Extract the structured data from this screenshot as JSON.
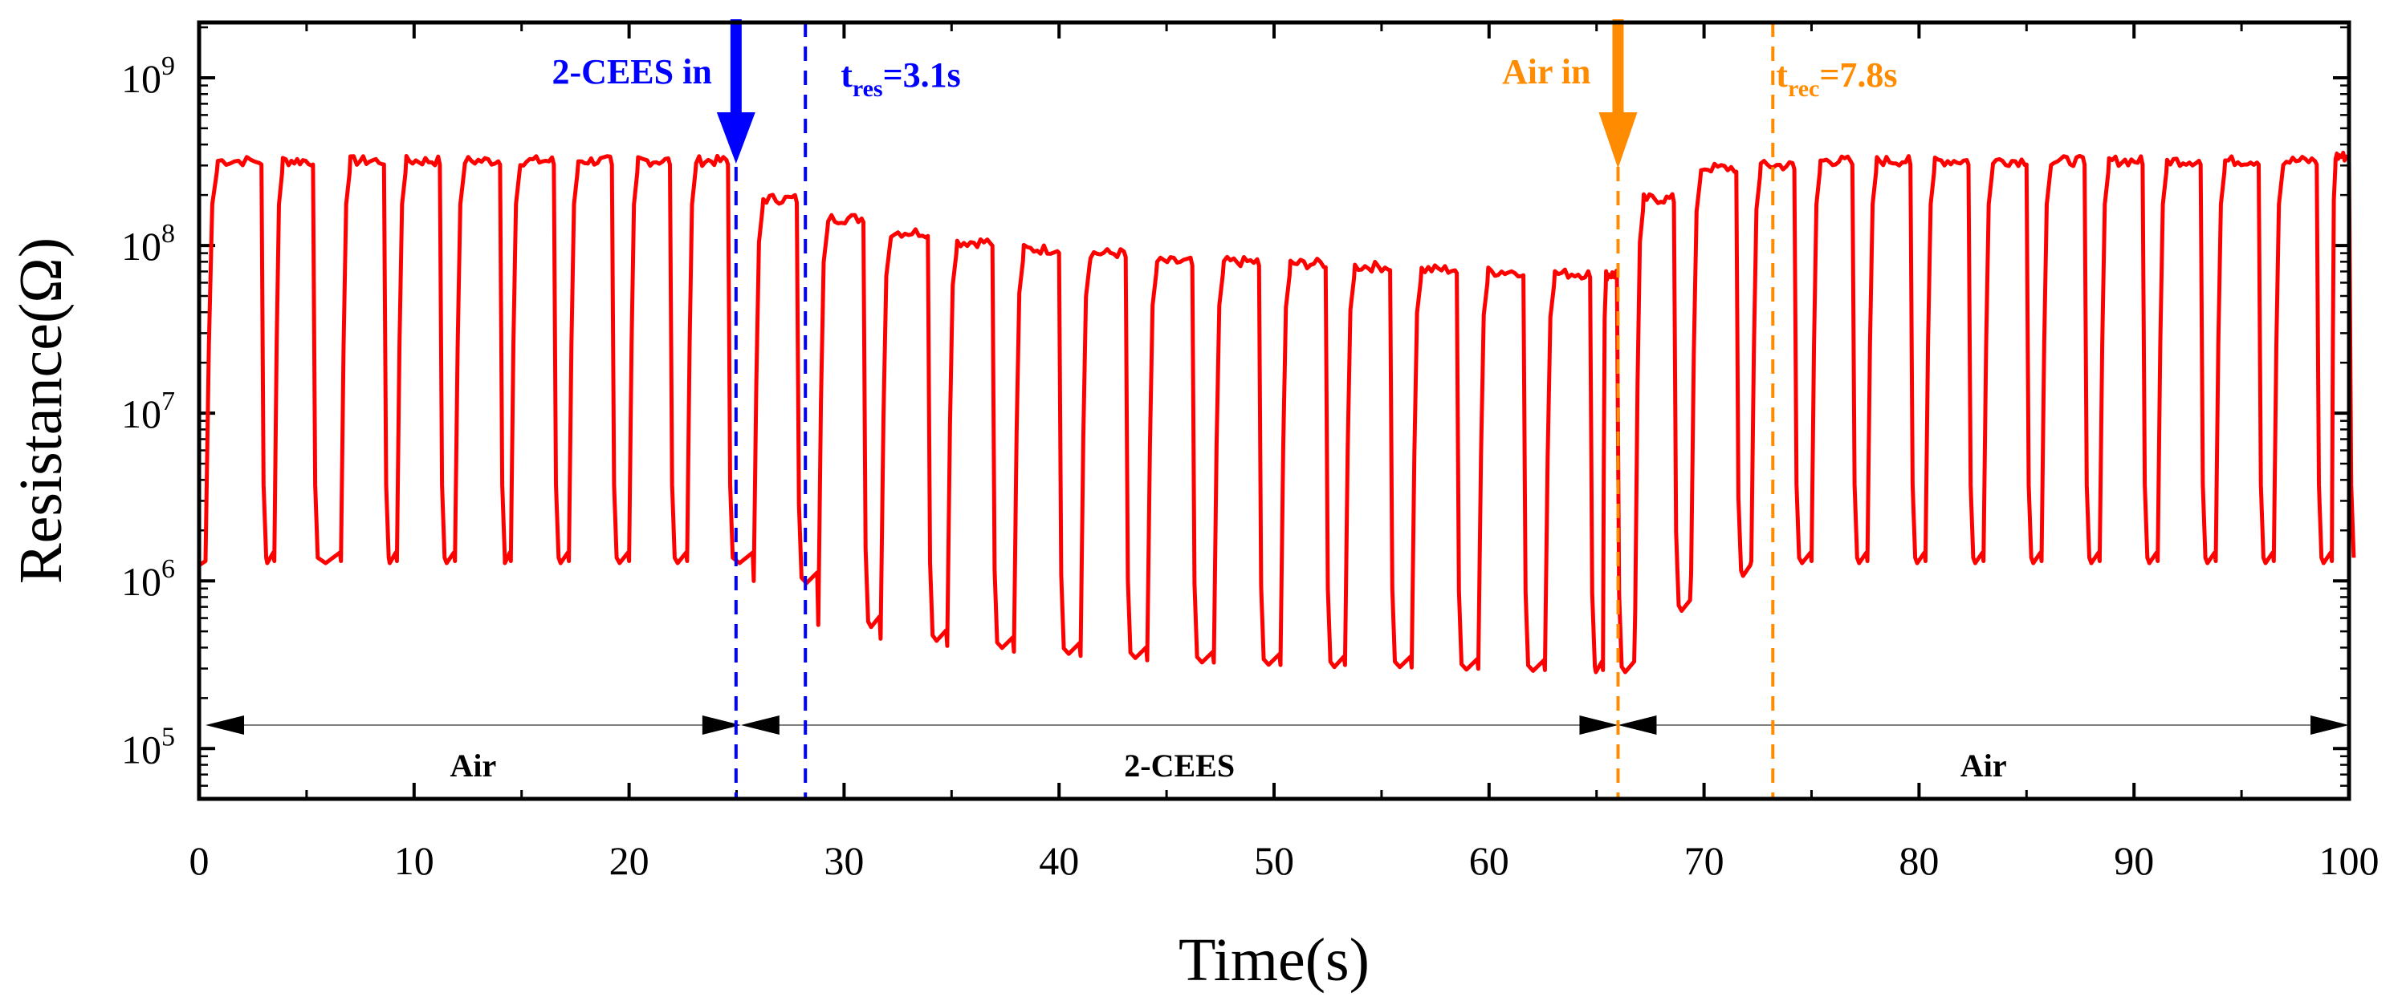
{
  "chart_data": {
    "type": "line",
    "title": "",
    "xlabel": "Time(s)",
    "ylabel": "Resistance(Ω)",
    "xlim": [
      0,
      100
    ],
    "ylim_log10": [
      4.7,
      9.33
    ],
    "y_scale": "log",
    "x_ticks": [
      0,
      10,
      20,
      30,
      40,
      50,
      60,
      70,
      80,
      90,
      100
    ],
    "x_tick_labels": [
      "0",
      "10",
      "20",
      "30",
      "40",
      "50",
      "60",
      "70",
      "80",
      "90",
      "100"
    ],
    "y_ticks": [
      {
        "base": "10",
        "exp": "5",
        "log": 5
      },
      {
        "base": "10",
        "exp": "6",
        "log": 6
      },
      {
        "base": "10",
        "exp": "7",
        "log": 7
      },
      {
        "base": "10",
        "exp": "8",
        "log": 8
      },
      {
        "base": "10",
        "exp": "9",
        "log": 9
      }
    ],
    "series": [
      {
        "name": "Resistance",
        "color": "#ff0000",
        "pulses": [
          {
            "start": 0.3,
            "end": 2.9,
            "high": 320000000.0,
            "low": 1250000.0
          },
          {
            "start": 3.5,
            "end": 5.3,
            "high": 320000000.0,
            "low": 1250000.0
          },
          {
            "start": 6.6,
            "end": 8.6,
            "high": 320000000.0,
            "low": 1250000.0
          },
          {
            "start": 9.2,
            "end": 11.2,
            "high": 320000000.0,
            "low": 1250000.0
          },
          {
            "start": 11.9,
            "end": 14.0,
            "high": 320000000.0,
            "low": 1250000.0
          },
          {
            "start": 14.5,
            "end": 16.5,
            "high": 320000000.0,
            "low": 1250000.0
          },
          {
            "start": 17.2,
            "end": 19.2,
            "high": 320000000.0,
            "low": 1250000.0
          },
          {
            "start": 20.0,
            "end": 21.9,
            "high": 320000000.0,
            "low": 1250000.0
          },
          {
            "start": 22.7,
            "end": 24.6,
            "high": 320000000.0,
            "low": 1250000.0
          },
          {
            "start": 25.8,
            "end": 27.8,
            "high": 190000000.0,
            "low": 950000.0
          },
          {
            "start": 28.8,
            "end": 30.9,
            "high": 145000000.0,
            "low": 520000.0
          },
          {
            "start": 31.7,
            "end": 33.9,
            "high": 120000000.0,
            "low": 430000.0
          },
          {
            "start": 34.8,
            "end": 36.9,
            "high": 105000000.0,
            "low": 390000.0
          },
          {
            "start": 37.9,
            "end": 40.0,
            "high": 95000000.0,
            "low": 360000.0
          },
          {
            "start": 41.0,
            "end": 43.1,
            "high": 90000000.0,
            "low": 340000.0
          },
          {
            "start": 44.1,
            "end": 46.2,
            "high": 80000000.0,
            "low": 320000.0
          },
          {
            "start": 47.2,
            "end": 49.3,
            "high": 80000000.0,
            "low": 310000.0
          },
          {
            "start": 50.3,
            "end": 52.4,
            "high": 78000000.0,
            "low": 300000.0
          },
          {
            "start": 53.3,
            "end": 55.4,
            "high": 75000000.0,
            "low": 300000.0
          },
          {
            "start": 56.4,
            "end": 58.5,
            "high": 72000000.0,
            "low": 290000.0
          },
          {
            "start": 59.5,
            "end": 61.6,
            "high": 70000000.0,
            "low": 285000.0
          },
          {
            "start": 62.6,
            "end": 64.7,
            "high": 68000000.0,
            "low": 280000.0
          },
          {
            "start": 65.3,
            "end": 65.95,
            "high": 67000000.0,
            "low": 280000.0
          },
          {
            "start": 66.8,
            "end": 68.6,
            "high": 190000000.0,
            "low": 650000.0
          },
          {
            "start": 69.4,
            "end": 71.5,
            "high": 290000000.0,
            "low": 1050000.0
          },
          {
            "start": 72.2,
            "end": 74.2,
            "high": 300000000.0,
            "low": 1250000.0
          },
          {
            "start": 75.0,
            "end": 76.9,
            "high": 320000000.0,
            "low": 1250000.0
          },
          {
            "start": 77.6,
            "end": 79.6,
            "high": 320000000.0,
            "low": 1250000.0
          },
          {
            "start": 80.3,
            "end": 82.3,
            "high": 320000000.0,
            "low": 1250000.0
          },
          {
            "start": 83.0,
            "end": 85.0,
            "high": 320000000.0,
            "low": 1250000.0
          },
          {
            "start": 85.7,
            "end": 87.7,
            "high": 320000000.0,
            "low": 1250000.0
          },
          {
            "start": 88.4,
            "end": 90.4,
            "high": 320000000.0,
            "low": 1250000.0
          },
          {
            "start": 91.1,
            "end": 93.1,
            "high": 320000000.0,
            "low": 1250000.0
          },
          {
            "start": 93.8,
            "end": 95.8,
            "high": 320000000.0,
            "low": 1250000.0
          },
          {
            "start": 96.5,
            "end": 98.5,
            "high": 320000000.0,
            "low": 1250000.0
          },
          {
            "start": 99.2,
            "end": 100.0,
            "high": 340000000.0,
            "low": 1250000.0
          }
        ]
      }
    ],
    "annotations": {
      "cees_in": {
        "text": "2-CEES in",
        "x": 24.9,
        "color": "#0000ff"
      },
      "t_res": {
        "main": "t",
        "sub": "res",
        "value": "=3.1s",
        "x_line": 28.2,
        "color": "#0000ff"
      },
      "air_in": {
        "text": "Air in",
        "x": 66.0,
        "color": "#ff8c00"
      },
      "t_rec": {
        "main": "t",
        "sub": "rec",
        "value": "=7.8s",
        "x_line": 73.2,
        "color": "#ff8c00"
      }
    },
    "regions": [
      {
        "label": "Air",
        "from": 0.3,
        "to": 25.2
      },
      {
        "label": "2-CEES",
        "from": 25.2,
        "to": 66.0
      },
      {
        "label": "Air",
        "from": 66.0,
        "to": 100.0
      }
    ]
  }
}
